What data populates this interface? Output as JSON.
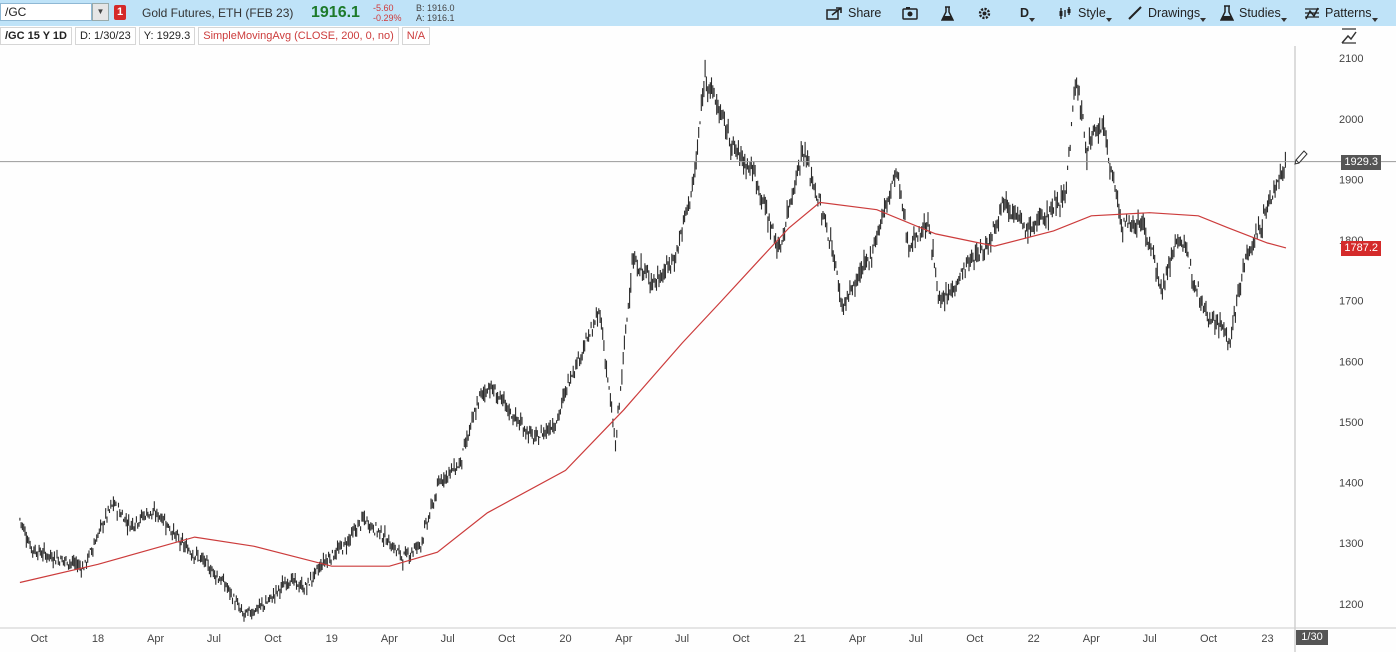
{
  "toolbar": {
    "symbol": "/GC",
    "alert_badge": "1",
    "instrument": "Gold Futures, ETH (FEB 23)",
    "last_price": "1916.1",
    "net_change": "-5.60",
    "pct_change": "-0.29%",
    "bid": "B: 1916.0",
    "ask": "A: 1916.1",
    "buttons": {
      "share": "Share",
      "aggregation": "D",
      "style": "Style",
      "drawings": "Drawings",
      "studies": "Studies",
      "patterns": "Patterns"
    }
  },
  "info_bar": {
    "period": "/GC 15 Y 1D",
    "date": "D: 1/30/23",
    "y": "Y: 1929.3",
    "study": "SimpleMovingAvg (CLOSE, 200, 0, no)",
    "study_value": "N/A"
  },
  "price_tags": {
    "cursor": "1929.3",
    "sma": "1787.2",
    "date": "1/30"
  },
  "colors": {
    "toolbar_bg": "#bfe3f8",
    "price_up": "#1d7a2a",
    "price_down": "#d03a3a",
    "sma_line": "#cc3c3c",
    "candles": "#2a2a2a"
  },
  "chart_data": {
    "type": "line",
    "title": "",
    "ylim": [
      1160,
      2120
    ],
    "y_ticks": [
      "1200",
      "1300",
      "1400",
      "1500",
      "1600",
      "1700",
      "1800",
      "1900",
      "2000",
      "2100"
    ],
    "x_ticks": [
      "Oct",
      "18",
      "Apr",
      "Jul",
      "Oct",
      "19",
      "Apr",
      "Jul",
      "Oct",
      "20",
      "Apr",
      "Jul",
      "Oct",
      "21",
      "Apr",
      "Jul",
      "Oct",
      "22",
      "Apr",
      "Jul",
      "Oct",
      "23"
    ],
    "series": [
      {
        "kind": "price",
        "x": [
          "2017-09-01",
          "2017-09-20",
          "2017-10-15",
          "2017-11-15",
          "2017-12-10",
          "2018-01-10",
          "2018-01-25",
          "2018-02-20",
          "2018-03-20",
          "2018-04-10",
          "2018-05-10",
          "2018-06-15",
          "2018-07-20",
          "2018-08-16",
          "2018-09-20",
          "2018-10-26",
          "2018-11-20",
          "2018-12-20",
          "2019-01-20",
          "2019-02-20",
          "2019-03-20",
          "2019-04-23",
          "2019-05-20",
          "2019-06-20",
          "2019-07-20",
          "2019-08-20",
          "2019-09-04",
          "2019-10-15",
          "2019-11-15",
          "2019-12-20",
          "2020-01-08",
          "2020-02-24",
          "2020-03-19",
          "2020-04-14",
          "2020-05-20",
          "2020-06-20",
          "2020-07-20",
          "2020-08-06",
          "2020-09-20",
          "2020-10-20",
          "2020-11-30",
          "2020-12-20",
          "2021-01-06",
          "2021-02-20",
          "2021-03-08",
          "2021-04-20",
          "2021-06-01",
          "2021-06-20",
          "2021-07-20",
          "2021-08-09",
          "2021-09-20",
          "2021-10-20",
          "2021-11-16",
          "2021-12-20",
          "2022-01-20",
          "2022-02-20",
          "2022-03-08",
          "2022-03-25",
          "2022-04-18",
          "2022-05-20",
          "2022-06-20",
          "2022-07-21",
          "2022-08-15",
          "2022-09-28",
          "2022-10-20",
          "2022-11-03",
          "2022-11-25",
          "2022-12-20",
          "2023-01-10",
          "2023-01-30"
        ],
        "y": [
          1340,
          1290,
          1280,
          1270,
          1260,
          1335,
          1365,
          1330,
          1350,
          1345,
          1300,
          1270,
          1230,
          1180,
          1200,
          1240,
          1225,
          1270,
          1295,
          1340,
          1315,
          1275,
          1300,
          1405,
          1430,
          1540,
          1560,
          1505,
          1470,
          1505,
          1575,
          1680,
          1460,
          1765,
          1730,
          1770,
          1900,
          2075,
          1950,
          1915,
          1780,
          1880,
          1950,
          1790,
          1690,
          1770,
          1915,
          1790,
          1830,
          1690,
          1760,
          1790,
          1870,
          1815,
          1840,
          1880,
          2070,
          1950,
          1990,
          1820,
          1830,
          1720,
          1810,
          1680,
          1660,
          1630,
          1760,
          1820,
          1880,
          1929
        ]
      },
      {
        "kind": "sma",
        "name": "SimpleMovingAvg (CLOSE, 200, 0, no)",
        "x": [
          "2017-09-01",
          "2018-01-01",
          "2018-06-01",
          "2018-09-01",
          "2019-01-01",
          "2019-04-01",
          "2019-06-15",
          "2019-09-01",
          "2020-01-01",
          "2020-04-01",
          "2020-07-01",
          "2020-09-01",
          "2020-11-01",
          "2020-12-15",
          "2021-02-01",
          "2021-05-01",
          "2021-08-01",
          "2021-11-01",
          "2022-02-01",
          "2022-04-01",
          "2022-07-01",
          "2022-09-15",
          "2022-11-01",
          "2023-01-01",
          "2023-01-30"
        ],
        "y": [
          1235,
          1265,
          1310,
          1295,
          1262,
          1262,
          1285,
          1350,
          1420,
          1520,
          1630,
          1700,
          1770,
          1820,
          1862,
          1850,
          1810,
          1790,
          1815,
          1840,
          1845,
          1840,
          1820,
          1795,
          1787
        ]
      }
    ],
    "grid": false
  }
}
